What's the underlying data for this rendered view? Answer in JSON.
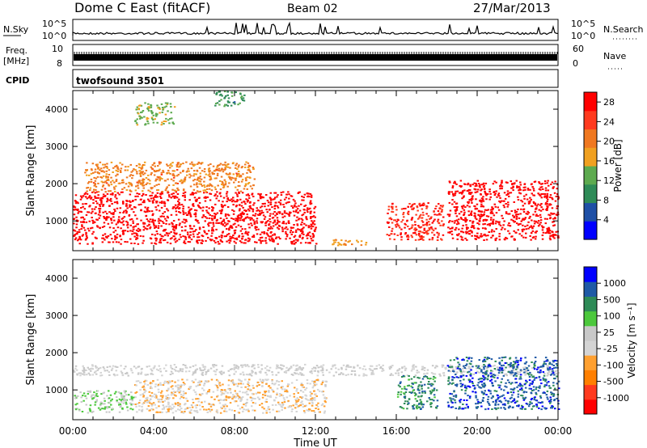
{
  "header": {
    "station": "Dome C East (fitACF)",
    "beam": "Beam 02",
    "date": "27/Mar/2013"
  },
  "status_panels": {
    "nsky_label": "N.Sky",
    "nsky_ticks": [
      "10^5",
      "10^0"
    ],
    "nsearch_label": "N.Search",
    "nsearch_ticks": [
      "10^5",
      "10^0"
    ],
    "freq_label": "Freq.",
    "freq_unit": "[MHz]",
    "freq_ticks": [
      "10",
      "8"
    ],
    "nave_label": "Nave",
    "nave_ticks": [
      "60",
      "0"
    ],
    "cpid_label": "CPID",
    "cpid_value": "twofsound 3501"
  },
  "colors": {
    "power_scale": [
      "#0000ff",
      "#1e4fa6",
      "#2e8b57",
      "#5daa4f",
      "#f0a020",
      "#f07820",
      "#ff3a1e",
      "#ff0000"
    ],
    "velocity_scale": [
      "#ff0000",
      "#ff3a1e",
      "#ff7f00",
      "#ffa030",
      "#d4d4d4",
      "#c8c8c8",
      "#4cc83c",
      "#2e8b57",
      "#1f5aa6",
      "#0000ff"
    ],
    "ground_scatter": "#a9a9a9"
  },
  "chart_data": [
    {
      "type": "heatmap",
      "name": "power",
      "ylabel": "Slant Range [km]",
      "yticks": [
        "1000",
        "2000",
        "3000",
        "4000"
      ],
      "ylim": [
        200,
        4500
      ],
      "xlim": [
        0,
        24
      ],
      "xticks": [
        "00:00",
        "04:00",
        "08:00",
        "12:00",
        "16:00",
        "20:00",
        "00:00"
      ],
      "colorbar": {
        "label": "Power [dB]",
        "ticks": [
          "4",
          "8",
          "12",
          "16",
          "20",
          "24",
          "28"
        ],
        "range": [
          0,
          30
        ]
      },
      "regions": [
        {
          "t0": 0.0,
          "t1": 12.0,
          "r0": 400,
          "r1": 1800,
          "v": 29
        },
        {
          "t0": 0.5,
          "t1": 9.0,
          "r0": 1800,
          "r1": 2600,
          "v": 20
        },
        {
          "t0": 3.0,
          "t1": 5.0,
          "r0": 3600,
          "r1": 4200,
          "v": 14
        },
        {
          "t0": 7.0,
          "t1": 8.5,
          "r0": 4100,
          "r1": 4500,
          "v": 10
        },
        {
          "t0": 12.8,
          "t1": 14.5,
          "r0": 350,
          "r1": 550,
          "v": 18
        },
        {
          "t0": 15.5,
          "t1": 18.3,
          "r0": 500,
          "r1": 1500,
          "v": 26
        },
        {
          "t0": 18.5,
          "t1": 24.0,
          "r0": 500,
          "r1": 2100,
          "v": 29
        }
      ]
    },
    {
      "type": "heatmap",
      "name": "velocity",
      "ylabel": "Slant Range [km]",
      "yticks": [
        "1000",
        "2000",
        "3000",
        "4000"
      ],
      "ylim": [
        200,
        4500
      ],
      "xlim": [
        0,
        24
      ],
      "xticks": [
        "00:00",
        "04:00",
        "08:00",
        "12:00",
        "16:00",
        "20:00",
        "00:00"
      ],
      "xlabel": "Time UT",
      "colorbar": {
        "label": "Velocity [m s⁻¹]",
        "ticks": [
          "1000",
          "500",
          "100",
          "25",
          "-25",
          "-100",
          "-500",
          "-1000"
        ],
        "range": [
          -1000,
          1000
        ]
      },
      "regions": [
        {
          "t0": 0.0,
          "t1": 3.0,
          "r0": 400,
          "r1": 1000,
          "v": 200
        },
        {
          "t0": 3.0,
          "t1": 12.5,
          "r0": 400,
          "r1": 1300,
          "v": -150
        },
        {
          "t0": 0.0,
          "t1": 24.0,
          "r0": 1400,
          "r1": 1700,
          "v": 0
        },
        {
          "t0": 16.0,
          "t1": 18.0,
          "r0": 500,
          "r1": 1400,
          "v": 500
        },
        {
          "t0": 18.5,
          "t1": 24.0,
          "r0": 500,
          "r1": 1900,
          "v": 700
        }
      ]
    }
  ]
}
